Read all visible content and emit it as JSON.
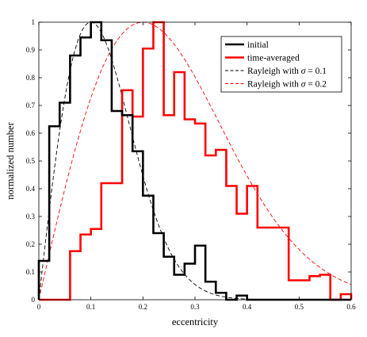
{
  "chart_data": {
    "type": "line",
    "xlabel": "eccentricity",
    "ylabel": "normalized number",
    "xlim": [
      0,
      0.6
    ],
    "ylim": [
      0,
      1
    ],
    "x_ticks": [
      "0",
      "0.1",
      "0.2",
      "0.3",
      "0.4",
      "0.5",
      "0.6"
    ],
    "y_ticks": [
      "0",
      "0.1",
      "0.2",
      "0.3",
      "0.4",
      "0.5",
      "0.6",
      "0.7",
      "0.8",
      "0.9",
      "1"
    ],
    "grid": false,
    "legend_position": "top-right",
    "bin_edges": [
      0,
      0.02,
      0.04,
      0.06,
      0.08,
      0.1,
      0.12,
      0.14,
      0.16,
      0.18,
      0.2,
      0.22,
      0.24,
      0.26,
      0.28,
      0.3,
      0.32,
      0.34,
      0.36,
      0.38,
      0.4,
      0.42,
      0.44,
      0.46,
      0.48,
      0.5,
      0.52,
      0.54,
      0.56,
      0.58,
      0.6
    ],
    "series": [
      {
        "name": "initial",
        "kind": "histogram",
        "color": "#000000",
        "values": [
          0.14,
          0.625,
          0.71,
          0.88,
          0.945,
          1.0,
          0.935,
          0.68,
          0.665,
          0.535,
          0.375,
          0.24,
          0.155,
          0.09,
          0.13,
          0.195,
          0.065,
          0.025,
          0.0,
          0.015,
          0.0,
          0.0,
          0.0,
          0.0,
          0.0,
          0.0,
          0.0,
          0.0,
          0.0,
          0.0
        ]
      },
      {
        "name": "time-averaged",
        "kind": "histogram",
        "color": "#ff0000",
        "values": [
          0.0,
          0.0,
          0.0,
          0.175,
          0.235,
          0.255,
          0.42,
          0.42,
          0.755,
          0.66,
          0.905,
          1.0,
          0.665,
          0.82,
          0.65,
          0.635,
          0.52,
          0.54,
          0.41,
          0.31,
          0.41,
          0.26,
          0.26,
          0.26,
          0.07,
          0.07,
          0.085,
          0.09,
          0.0,
          0.02
        ]
      },
      {
        "name": "Rayleigh with σ = 0.1",
        "kind": "rayleigh",
        "sigma": 0.1,
        "color": "#000000",
        "dash": "dashed"
      },
      {
        "name": "Rayleigh with σ = 0.2",
        "kind": "rayleigh",
        "sigma": 0.2,
        "color": "#ff0000",
        "dash": "dashed"
      }
    ],
    "legend": [
      {
        "label": "initial",
        "color": "#000000",
        "style": "solid",
        "math": false
      },
      {
        "label": "time-averaged",
        "color": "#ff0000",
        "style": "solid",
        "math": false
      },
      {
        "label": "Rayleigh with ",
        "sym": "σ",
        "tail": " = 0.1",
        "color": "#000000",
        "style": "dashed",
        "math": true
      },
      {
        "label": "Rayleigh with ",
        "sym": "σ",
        "tail": " = 0.2",
        "color": "#ff0000",
        "style": "dashed",
        "math": true
      }
    ]
  }
}
